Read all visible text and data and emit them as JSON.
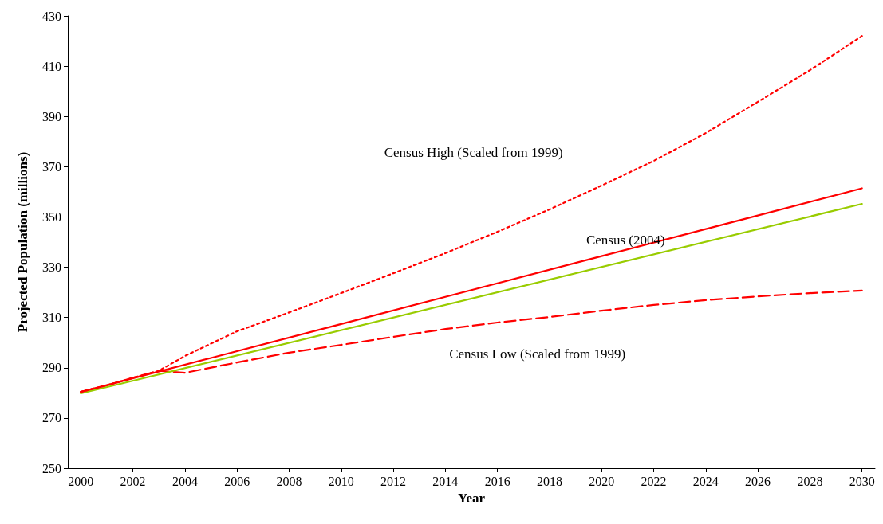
{
  "chart_data": {
    "type": "line",
    "xlabel": "Year",
    "ylabel": "Projected Population (millions)",
    "xlim": [
      1999.5,
      2030.5
    ],
    "xticks": [
      2000,
      2002,
      2004,
      2006,
      2008,
      2010,
      2012,
      2014,
      2016,
      2018,
      2020,
      2022,
      2024,
      2026,
      2028,
      2030
    ],
    "ylim": [
      250,
      430
    ],
    "yticks": [
      250,
      270,
      290,
      310,
      330,
      350,
      370,
      390,
      410,
      430
    ],
    "grid": false,
    "legend": false,
    "marker": "none",
    "series": [
      {
        "name": "Census High (Scaled from 1999)",
        "color": "#ff0000",
        "line_style": "dotted",
        "x": [
          2000,
          2001,
          2002,
          2003,
          2004,
          2006,
          2008,
          2010,
          2012,
          2014,
          2016,
          2018,
          2020,
          2022,
          2024,
          2026,
          2028,
          2030
        ],
        "values": [
          280.4,
          283,
          286,
          288.8,
          294.7,
          304.5,
          312,
          319.7,
          327.6,
          335.6,
          344.1,
          353,
          362.5,
          372.3,
          383.4,
          395.8,
          408.4,
          422
        ]
      },
      {
        "name": "Census (2004)",
        "color": "#ff0000",
        "line_style": "solid",
        "x": [
          2000,
          2005,
          2010,
          2015,
          2020,
          2025,
          2030
        ],
        "values": [
          280.4,
          293.9,
          307.4,
          320.9,
          334.4,
          347.9,
          361.4
        ]
      },
      {
        "color": "#99cc00",
        "line_style": "solid",
        "x": [
          2000,
          2030
        ],
        "values": [
          279.8,
          355.2
        ]
      },
      {
        "name": "Census Low (Scaled from 1999)",
        "color": "#ff0000",
        "line_style": "dashed",
        "x": [
          2000,
          2001,
          2002,
          2003,
          2004,
          2006,
          2008,
          2010,
          2012,
          2014,
          2016,
          2018,
          2020,
          2022,
          2024,
          2026,
          2028,
          2030
        ],
        "values": [
          280.4,
          283,
          286,
          288.8,
          288,
          292.1,
          296,
          299.1,
          302.3,
          305.4,
          308,
          310.2,
          312.7,
          315,
          316.9,
          318.4,
          319.7,
          320.7
        ]
      }
    ]
  }
}
